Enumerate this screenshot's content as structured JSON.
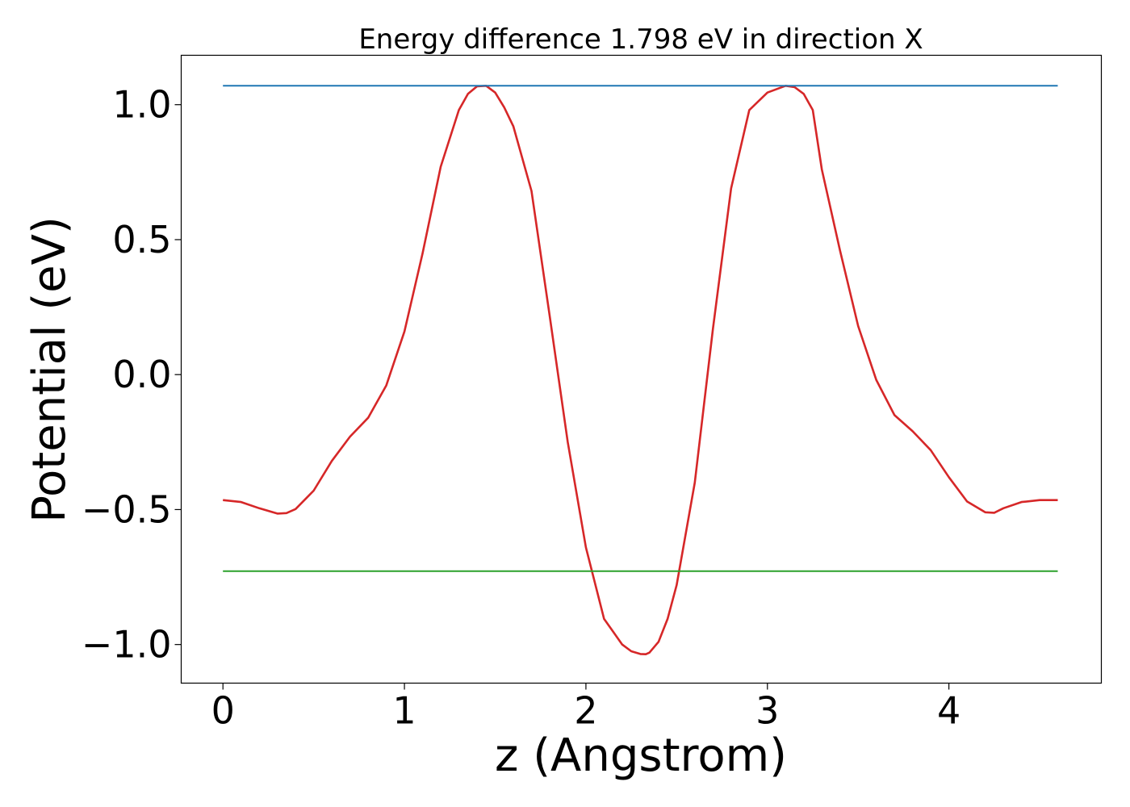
{
  "chart_data": {
    "type": "line",
    "title": "Energy difference 1.798 eV in direction X",
    "xlabel": "z (Angstrom)",
    "ylabel": "Potential (eV)",
    "xlim": [
      -0.23,
      4.84
    ],
    "ylim": [
      -1.143,
      1.183
    ],
    "xticks": [
      0,
      1,
      2,
      3,
      4
    ],
    "xtick_labels": [
      "0",
      "1",
      "2",
      "3",
      "4"
    ],
    "yticks": [
      -1.0,
      -0.5,
      0.0,
      0.5,
      1.0
    ],
    "ytick_labels": [
      "−1.0",
      "−0.5",
      "0.0",
      "0.5",
      "1.0"
    ],
    "grid": false,
    "series": [
      {
        "color": "#d62728",
        "x": [
          0.0,
          0.1,
          0.2,
          0.3,
          0.35,
          0.4,
          0.5,
          0.6,
          0.7,
          0.8,
          0.9,
          1.0,
          1.1,
          1.2,
          1.3,
          1.35,
          1.4,
          1.45,
          1.5,
          1.55,
          1.6,
          1.7,
          1.8,
          1.9,
          2.0,
          2.1,
          2.2,
          2.25,
          2.3,
          2.33,
          2.35,
          2.4,
          2.45,
          2.5,
          2.6,
          2.7,
          2.8,
          2.9,
          3.0,
          3.1,
          3.15,
          3.2,
          3.25,
          3.3,
          3.4,
          3.5,
          3.6,
          3.7,
          3.8,
          3.9,
          4.0,
          4.1,
          4.2,
          4.25,
          4.3,
          4.4,
          4.5,
          4.6
        ],
        "y": [
          -0.465,
          -0.472,
          -0.495,
          -0.515,
          -0.513,
          -0.498,
          -0.43,
          -0.32,
          -0.23,
          -0.16,
          -0.04,
          0.16,
          0.45,
          0.77,
          0.98,
          1.04,
          1.068,
          1.07,
          1.045,
          0.99,
          0.92,
          0.68,
          0.22,
          -0.25,
          -0.64,
          -0.905,
          -1.0,
          -1.025,
          -1.035,
          -1.036,
          -1.03,
          -0.99,
          -0.905,
          -0.78,
          -0.4,
          0.17,
          0.69,
          0.98,
          1.045,
          1.07,
          1.065,
          1.04,
          0.98,
          0.76,
          0.46,
          0.18,
          -0.02,
          -0.15,
          -0.21,
          -0.28,
          -0.38,
          -0.47,
          -0.51,
          -0.512,
          -0.495,
          -0.472,
          -0.465,
          -0.465
        ]
      },
      {
        "color": "#1f77b4",
        "x": [
          0.0,
          4.6
        ],
        "y": [
          1.07,
          1.07
        ]
      },
      {
        "color": "#2ca02c",
        "x": [
          0.0,
          4.6
        ],
        "y": [
          -0.728,
          -0.728
        ]
      }
    ]
  }
}
